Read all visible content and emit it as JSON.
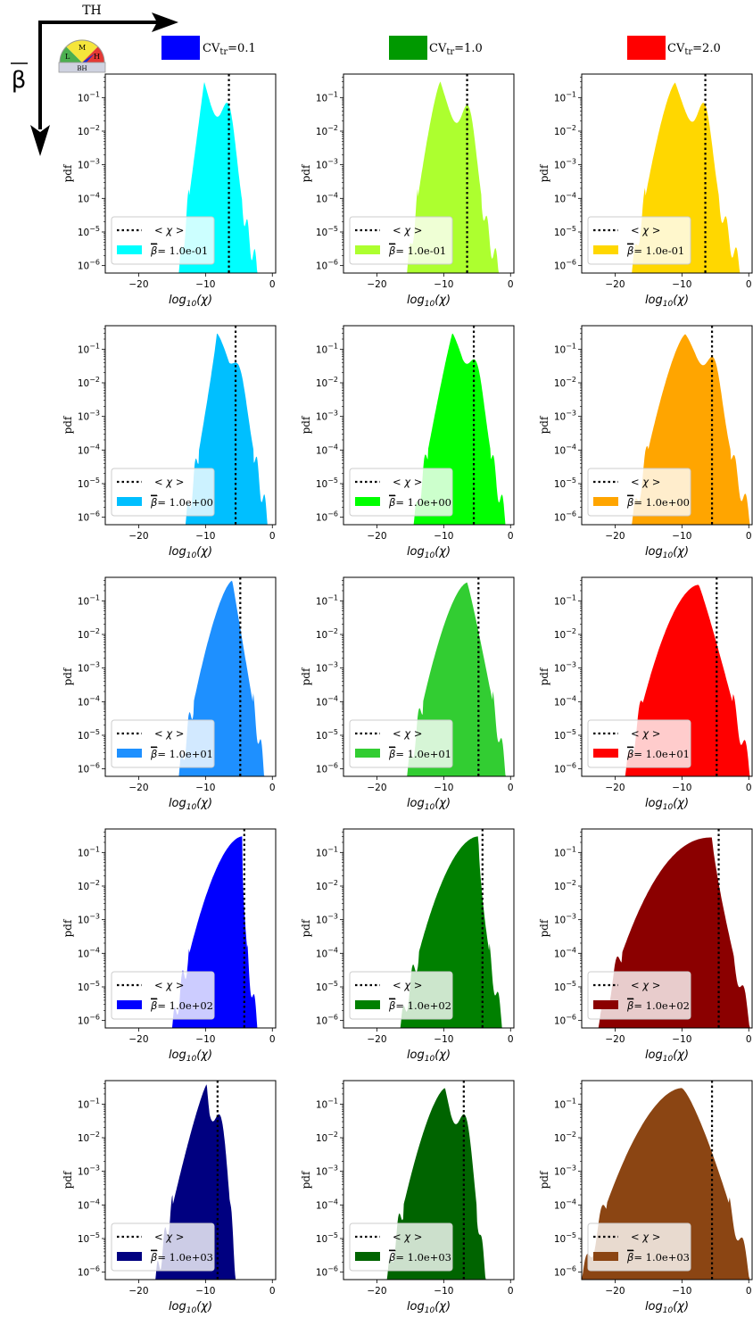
{
  "header": {
    "th_label": "TH",
    "beta_label": "β",
    "gauge": {
      "l": "L",
      "m": "M",
      "h": "H",
      "bh": "BH"
    },
    "cv_legend": [
      {
        "base": "CV",
        "sub": "tr",
        "rest": "=0.1",
        "color": "#0000ff"
      },
      {
        "base": "CV",
        "sub": "tr",
        "rest": "=1.0",
        "color": "#009900"
      },
      {
        "base": "CV",
        "sub": "tr",
        "rest": "=2.0",
        "color": "#ff0000"
      }
    ]
  },
  "chart_data": {
    "type": "area",
    "xlabel": "log10(χ)",
    "ylabel": "pdf",
    "xlim": [
      -25,
      0.5
    ],
    "ylim": [
      6e-07,
      0.5
    ],
    "yscale": "log",
    "xticks": [
      -20,
      -10,
      0
    ],
    "ytick_exponents": [
      -6,
      -5,
      -4,
      -3,
      -2,
      -1
    ],
    "legend": {
      "mean_label": "< χ >",
      "beta_prefix": "β",
      "placement": "lower-left"
    },
    "panels": [
      {
        "row": 0,
        "col": 0,
        "beta": "= 1.0e-01",
        "color": "#00ffff",
        "mean": -6.5,
        "peak_x": -10.2,
        "peak": 0.3,
        "xmin": -14.0,
        "xmax": -2.0,
        "sl": 1.0,
        "sr": 1.0,
        "shoulder": {
          "x": -6.8,
          "y": 0.07
        }
      },
      {
        "row": 0,
        "col": 1,
        "beta": "= 1.0e-01",
        "color": "#adff2f",
        "mean": -6.5,
        "peak_x": -10.5,
        "peak": 0.3,
        "xmin": -15.5,
        "xmax": -1.5,
        "sl": 1.3,
        "sr": 1.0,
        "shoulder": {
          "x": -6.5,
          "y": 0.06
        }
      },
      {
        "row": 0,
        "col": 2,
        "beta": "= 1.0e-01",
        "color": "#ffd700",
        "mean": -6.5,
        "peak_x": -11.0,
        "peak": 0.28,
        "xmin": -17.5,
        "xmax": -1.0,
        "sl": 1.4,
        "sr": 1.0,
        "shoulder": {
          "x": -6.8,
          "y": 0.07
        }
      },
      {
        "row": 1,
        "col": 0,
        "beta": "= 1.0e+00",
        "color": "#00bfff",
        "mean": -5.5,
        "peak_x": -8.3,
        "peak": 0.3,
        "xmin": -13.0,
        "xmax": -0.5,
        "sl": 0.9,
        "sr": 1.3,
        "shoulder": {
          "x": -5.5,
          "y": 0.04
        }
      },
      {
        "row": 1,
        "col": 1,
        "beta": "= 1.0e+00",
        "color": "#00ff00",
        "mean": -5.5,
        "peak_x": -8.7,
        "peak": 0.3,
        "xmin": -14.5,
        "xmax": -0.5,
        "sl": 1.1,
        "sr": 1.2,
        "shoulder": {
          "x": -5.5,
          "y": 0.05
        }
      },
      {
        "row": 1,
        "col": 2,
        "beta": "= 1.0e+00",
        "color": "#ffa500",
        "mean": -5.5,
        "peak_x": -9.5,
        "peak": 0.28,
        "xmin": -17.5,
        "xmax": 0.5,
        "sl": 1.4,
        "sr": 1.2,
        "shoulder": {
          "x": -5.5,
          "y": 0.06
        }
      },
      {
        "row": 2,
        "col": 0,
        "beta": "= 1.0e+01",
        "color": "#1e90ff",
        "mean": -4.8,
        "peak_x": -6.0,
        "peak": 0.4,
        "xmin": -14.0,
        "xmax": -1.0,
        "sl": 1.5,
        "sr": 1.0,
        "shoulder": null
      },
      {
        "row": 2,
        "col": 1,
        "beta": "= 1.0e+01",
        "color": "#32cd32",
        "mean": -4.8,
        "peak_x": -6.5,
        "peak": 0.35,
        "xmin": -15.5,
        "xmax": -0.5,
        "sl": 1.6,
        "sr": 1.1,
        "shoulder": null
      },
      {
        "row": 2,
        "col": 2,
        "beta": "= 1.0e+01",
        "color": "#ff0000",
        "mean": -4.8,
        "peak_x": -7.5,
        "peak": 0.3,
        "xmin": -18.5,
        "xmax": 0.5,
        "sl": 1.8,
        "sr": 1.1,
        "shoulder": null
      },
      {
        "row": 3,
        "col": 0,
        "beta": "= 1.0e+02",
        "color": "#0000ff",
        "mean": -4.2,
        "peak_x": -4.5,
        "peak": 0.3,
        "xmin": -15.0,
        "xmax": -2.0,
        "sl": 1.8,
        "sr": 0.4,
        "shoulder": {
          "x": -6.5,
          "y": 0.25
        }
      },
      {
        "row": 3,
        "col": 1,
        "beta": "= 1.0e+02",
        "color": "#008000",
        "mean": -4.2,
        "peak_x": -4.8,
        "peak": 0.3,
        "xmin": -16.5,
        "xmax": -1.0,
        "sl": 1.9,
        "sr": 0.6,
        "shoulder": {
          "x": -7.0,
          "y": 0.2
        }
      },
      {
        "row": 3,
        "col": 2,
        "beta": "= 1.0e+02",
        "color": "#8b0000",
        "mean": -4.5,
        "peak_x": -5.5,
        "peak": 0.28,
        "xmin": -22.5,
        "xmax": 0.5,
        "sl": 2.2,
        "sr": 0.8,
        "shoulder": {
          "x": -8.5,
          "y": 0.15
        }
      },
      {
        "row": 4,
        "col": 0,
        "beta": "= 1.0e+03",
        "color": "#000080",
        "mean": -8.2,
        "peak_x": -9.8,
        "peak": 0.4,
        "xmin": -17.5,
        "xmax": -5.5,
        "sl": 1.2,
        "sr": 0.8,
        "shoulder": {
          "x": -8.0,
          "y": 0.05
        }
      },
      {
        "row": 4,
        "col": 1,
        "beta": "= 1.0e+03",
        "color": "#006400",
        "mean": -7.0,
        "peak_x": -9.8,
        "peak": 0.3,
        "xmin": -18.5,
        "xmax": -3.5,
        "sl": 1.5,
        "sr": 1.0,
        "shoulder": {
          "x": -7.0,
          "y": 0.05
        }
      },
      {
        "row": 4,
        "col": 2,
        "beta": "= 1.0e+03",
        "color": "#8b4513",
        "mean": -5.5,
        "peak_x": -10.0,
        "peak": 0.3,
        "xmin": -25.0,
        "xmax": 0.5,
        "sl": 1.8,
        "sr": 1.3,
        "shoulder": null
      }
    ]
  }
}
